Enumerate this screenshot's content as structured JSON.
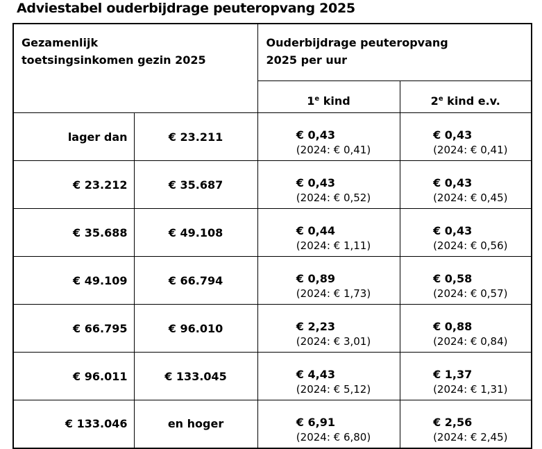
{
  "page": {
    "title": "Adviestabel ouderbijdrage peuteropvang 2025"
  },
  "table": {
    "header": {
      "income": {
        "line1": "Gezamenlijk",
        "line2": "toetsingsinkomen gezin 2025"
      },
      "contribution": {
        "line1": "Ouderbijdrage peuteropvang",
        "line2": "2025 per uur"
      },
      "child1": {
        "num": "1",
        "sup": "e",
        "rest": " kind"
      },
      "child2": {
        "num": "2",
        "sup": "e",
        "rest": " kind e.v."
      }
    },
    "rows": [
      {
        "from": "lager dan",
        "to": "€ 23.211",
        "child1": "€ 0,43",
        "child1_2024": "(2024: € 0,41)",
        "child2": "€ 0,43",
        "child2_2024": "(2024: € 0,41)"
      },
      {
        "from": "€ 23.212",
        "to": "€ 35.687",
        "child1": "€ 0,43",
        "child1_2024": "(2024: € 0,52)",
        "child2": "€ 0,43",
        "child2_2024": "(2024: € 0,45)"
      },
      {
        "from": "€ 35.688",
        "to": "€ 49.108",
        "child1": "€ 0,44",
        "child1_2024": "(2024: € 1,11)",
        "child2": "€ 0,43",
        "child2_2024": "(2024: € 0,56)"
      },
      {
        "from": "€ 49.109",
        "to": "€ 66.794",
        "child1": "€ 0,89",
        "child1_2024": "(2024: € 1,73)",
        "child2": "€ 0,58",
        "child2_2024": "(2024: € 0,57)"
      },
      {
        "from": "€ 66.795",
        "to": "€ 96.010",
        "child1": "€ 2,23",
        "child1_2024": "(2024: € 3,01)",
        "child2": "€ 0,88",
        "child2_2024": "(2024: € 0,84)"
      },
      {
        "from": "€ 96.011",
        "to": "€ 133.045",
        "child1": "€ 4,43",
        "child1_2024": "(2024: € 5,12)",
        "child2": "€ 1,37",
        "child2_2024": "(2024: € 1,31)"
      },
      {
        "from": "€ 133.046",
        "to": "en hoger",
        "child1": "€ 6,91",
        "child1_2024": "(2024: € 6,80)",
        "child2": "€ 2,56",
        "child2_2024": "(2024: € 2,45)"
      }
    ]
  }
}
